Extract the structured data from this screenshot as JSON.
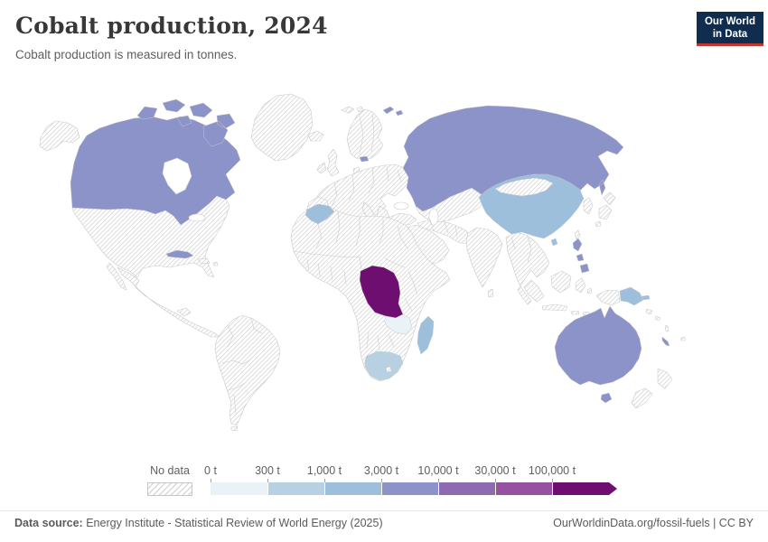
{
  "header": {
    "title": "Cobalt production, 2024",
    "subtitle": "Cobalt production is measured in tonnes.",
    "logo": {
      "line1": "Our World",
      "line2": "in Data",
      "bg_color": "#102d4f",
      "accent_color": "#c0362f"
    }
  },
  "chart_data": {
    "type": "choropleth",
    "title": "Cobalt production, 2024",
    "subtitle": "Cobalt production is measured in tonnes.",
    "unit": "t",
    "legend": {
      "no_data_label": "No data",
      "tick_labels": [
        "0 t",
        "300 t",
        "1,000 t",
        "3,000 t",
        "10,000 t",
        "30,000 t",
        "100,000 t"
      ],
      "bin_colors": [
        "#e9f2f7",
        "#b7d1e3",
        "#9ebfdc",
        "#8b93c8",
        "#8e6bb0",
        "#9751a1",
        "#6d0e70"
      ],
      "open_ended_arrow": true
    },
    "countries": [
      {
        "key": "drc",
        "name": "Democratic Republic of Congo",
        "value_range": "100,000 t and above",
        "bin": 6
      },
      {
        "key": "russia",
        "name": "Russia",
        "value_range": "3,000–10,000 t",
        "bin": 3
      },
      {
        "key": "canada",
        "name": "Canada",
        "value_range": "3,000–10,000 t",
        "bin": 3
      },
      {
        "key": "australia",
        "name": "Australia",
        "value_range": "3,000–10,000 t",
        "bin": 3
      },
      {
        "key": "philippines",
        "name": "Philippines",
        "value_range": "3,000–10,000 t",
        "bin": 3
      },
      {
        "key": "cuba",
        "name": "Cuba",
        "value_range": "3,000–10,000 t",
        "bin": 3
      },
      {
        "key": "new-caledonia",
        "name": "New Caledonia",
        "value_range": "3,000–10,000 t",
        "bin": 3
      },
      {
        "key": "estonia",
        "name": "Estonia",
        "value_range": "3,000–10,000 t",
        "bin": 3
      },
      {
        "key": "china",
        "name": "China",
        "value_range": "1,000–3,000 t",
        "bin": 2
      },
      {
        "key": "madagascar",
        "name": "Madagascar",
        "value_range": "1,000–3,000 t",
        "bin": 2
      },
      {
        "key": "morocco",
        "name": "Morocco",
        "value_range": "1,000–3,000 t",
        "bin": 2
      },
      {
        "key": "papua-new-guinea",
        "name": "Papua New Guinea",
        "value_range": "1,000–3,000 t",
        "bin": 2
      },
      {
        "key": "south-africa",
        "name": "South Africa",
        "value_range": "300–1,000 t",
        "bin": 1
      },
      {
        "key": "zambia",
        "name": "Zambia",
        "value_range": "0–300 t",
        "bin": 0
      }
    ],
    "no_data_regions": "United States, Greenland, Mexico, Central and South America, Europe, most of Africa, Middle East, Central Asia, Mongolia, India, Southeast Asia, Indonesia, Japan, Korea, New Zealand"
  },
  "map": {
    "hatch_line_color": "#d9d9d9",
    "border_color": "#cacaca",
    "sea_color": "#ffffff"
  },
  "footer": {
    "data_source_label": "Data source:",
    "data_source_text": "Energy Institute - Statistical Review of World Energy (2025)",
    "credit": "OurWorldinData.org/fossil-fuels | CC BY"
  }
}
